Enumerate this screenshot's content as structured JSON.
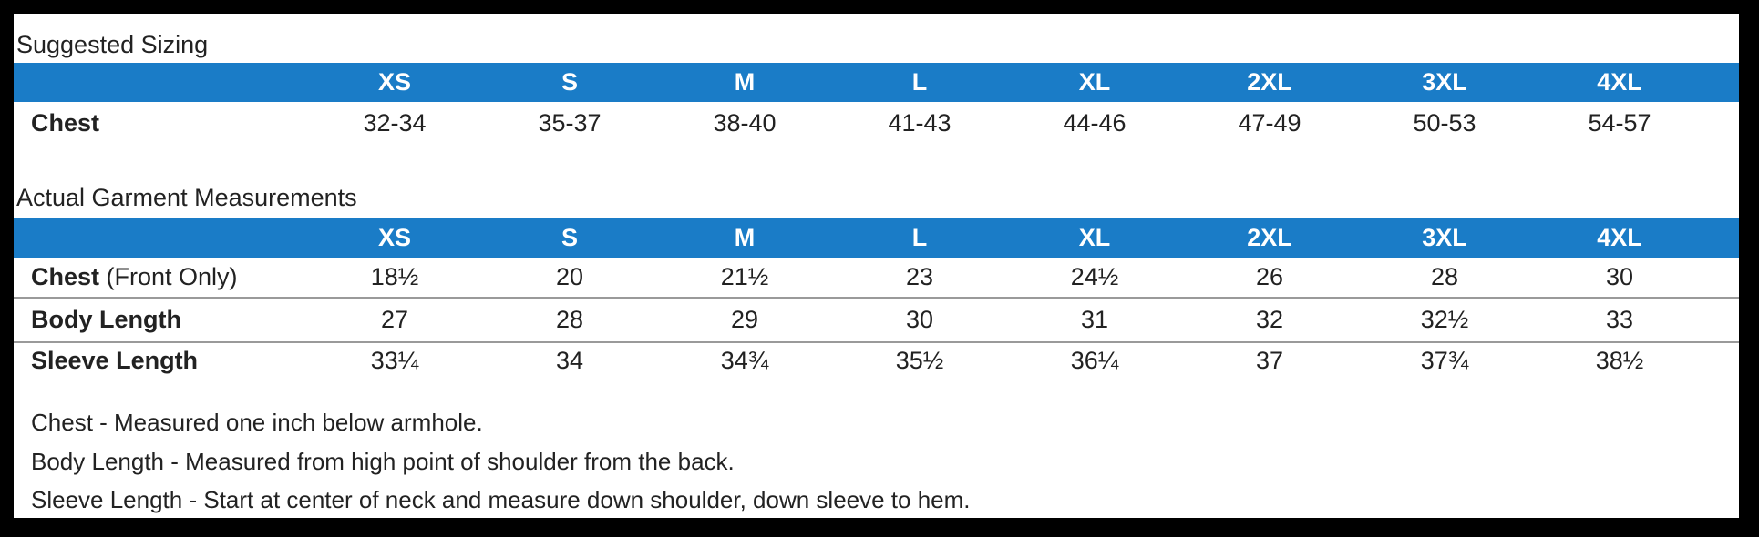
{
  "sections": [
    {
      "title": "Suggested Sizing",
      "sizes": [
        "XS",
        "S",
        "M",
        "L",
        "XL",
        "2XL",
        "3XL",
        "4XL"
      ],
      "rows": [
        {
          "label": "Chest",
          "values": [
            "32-34",
            "35-37",
            "38-40",
            "41-43",
            "44-46",
            "47-49",
            "50-53",
            "54-57"
          ]
        }
      ]
    },
    {
      "title": "Actual Garment Measurements",
      "sizes": [
        "XS",
        "S",
        "M",
        "L",
        "XL",
        "2XL",
        "3XL",
        "4XL"
      ],
      "rows": [
        {
          "label": "Chest",
          "note": "(Front Only)",
          "values": [
            "18½",
            "20",
            "21½",
            "23",
            "24½",
            "26",
            "28",
            "30"
          ]
        },
        {
          "label": "Body Length",
          "values": [
            "27",
            "28",
            "29",
            "30",
            "31",
            "32",
            "32½",
            "33"
          ]
        },
        {
          "label": "Sleeve Length",
          "values": [
            "33¼",
            "34",
            "34¾",
            "35½",
            "36¼",
            "37",
            "37¾",
            "38½"
          ]
        }
      ]
    }
  ],
  "notes": [
    "Chest - Measured one inch below armhole.",
    "Body Length - Measured from high point of shoulder from the back.",
    "Sleeve Length - Start at center of neck and measure down shoulder, down sleeve to hem."
  ]
}
